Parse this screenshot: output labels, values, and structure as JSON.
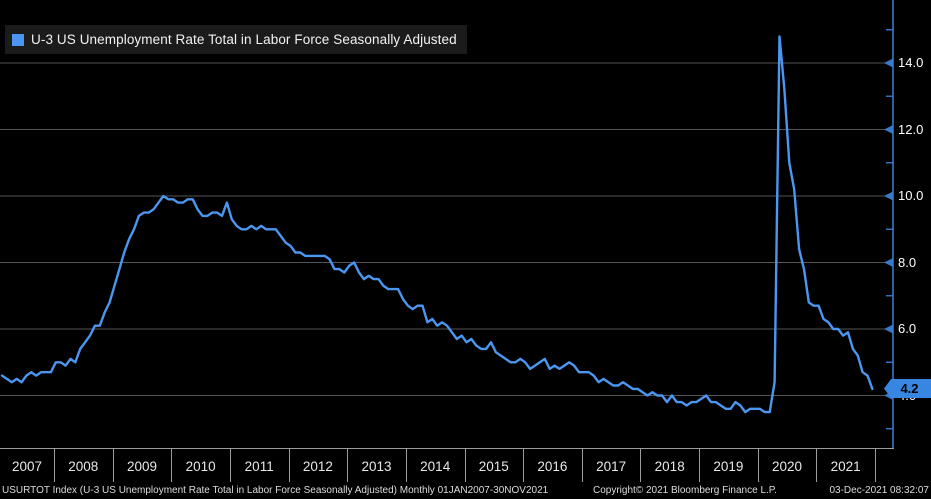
{
  "legend": {
    "label": "U-3 US Unemployment Rate Total in Labor Force Seasonally Adjusted"
  },
  "chart_data": {
    "type": "line",
    "title": "U-3 US Unemployment Rate Total in Labor Force Seasonally Adjusted",
    "frequency": "Monthly",
    "period": "01JAN2007-30NOV2021",
    "x_tick_labels": [
      "2007",
      "2008",
      "2009",
      "2010",
      "2011",
      "2012",
      "2013",
      "2014",
      "2015",
      "2016",
      "2017",
      "2018",
      "2019",
      "2020",
      "2021"
    ],
    "y_major_ticks": [
      14.0,
      12.0,
      10.0,
      8.0,
      6.0,
      4.0
    ],
    "y_minor_ticks": [
      15.0,
      13.0,
      11.0,
      9.0,
      7.0,
      5.0,
      3.0
    ],
    "ylim": [
      2.4,
      15.9
    ],
    "grid": "horizontal-only",
    "legend_position": "top-left",
    "last_value_label": "4.2",
    "series": [
      {
        "name": "U-3 US Unemployment Rate Total in Labor Force Seasonally Adjusted",
        "color": "#4b96f0",
        "x_start": "2007-01",
        "x_end": "2021-11",
        "values": [
          4.6,
          4.5,
          4.4,
          4.5,
          4.4,
          4.6,
          4.7,
          4.6,
          4.7,
          4.7,
          4.7,
          5.0,
          5.0,
          4.9,
          5.1,
          5.0,
          5.4,
          5.6,
          5.8,
          6.1,
          6.1,
          6.5,
          6.8,
          7.3,
          7.8,
          8.3,
          8.7,
          9.0,
          9.4,
          9.5,
          9.5,
          9.6,
          9.8,
          10.0,
          9.9,
          9.9,
          9.8,
          9.8,
          9.9,
          9.9,
          9.6,
          9.4,
          9.4,
          9.5,
          9.5,
          9.4,
          9.8,
          9.3,
          9.1,
          9.0,
          9.0,
          9.1,
          9.0,
          9.1,
          9.0,
          9.0,
          9.0,
          8.8,
          8.6,
          8.5,
          8.3,
          8.3,
          8.2,
          8.2,
          8.2,
          8.2,
          8.2,
          8.1,
          7.8,
          7.8,
          7.7,
          7.9,
          8.0,
          7.7,
          7.5,
          7.6,
          7.5,
          7.5,
          7.3,
          7.2,
          7.2,
          7.2,
          6.9,
          6.7,
          6.6,
          6.7,
          6.7,
          6.2,
          6.3,
          6.1,
          6.2,
          6.1,
          5.9,
          5.7,
          5.8,
          5.6,
          5.7,
          5.5,
          5.4,
          5.4,
          5.6,
          5.3,
          5.2,
          5.1,
          5.0,
          5.0,
          5.1,
          5.0,
          4.8,
          4.9,
          5.0,
          5.1,
          4.8,
          4.9,
          4.8,
          4.9,
          5.0,
          4.9,
          4.7,
          4.7,
          4.7,
          4.6,
          4.4,
          4.5,
          4.4,
          4.3,
          4.3,
          4.4,
          4.3,
          4.2,
          4.2,
          4.1,
          4.0,
          4.1,
          4.0,
          4.0,
          3.8,
          4.0,
          3.8,
          3.8,
          3.7,
          3.8,
          3.8,
          3.9,
          4.0,
          3.8,
          3.8,
          3.7,
          3.6,
          3.6,
          3.8,
          3.7,
          3.5,
          3.6,
          3.6,
          3.6,
          3.5,
          3.5,
          4.4,
          14.8,
          13.2,
          11.0,
          10.2,
          8.4,
          7.8,
          6.8,
          6.7,
          6.7,
          6.3,
          6.2,
          6.0,
          6.0,
          5.8,
          5.9,
          5.4,
          5.2,
          4.7,
          4.6,
          4.2
        ]
      }
    ]
  },
  "colors": {
    "background": "#000000",
    "line": "#4b96f0",
    "axis_line": "#3a78c8",
    "badge": "#3787e2",
    "gridline": "#555555",
    "xaxis_line": "#9c9c9c",
    "legend_bg": "#1b1b1b",
    "text": "#ffffff"
  },
  "footer": {
    "left": "USURTOT Index (U-3 US Unemployment Rate Total in Labor Force Seasonally Adjusted)  Monthly 01JAN2007-30NOV2021",
    "copyright": "Copyright© 2021 Bloomberg Finance L.P.",
    "datetime": "03-Dec-2021 08:32:07"
  }
}
